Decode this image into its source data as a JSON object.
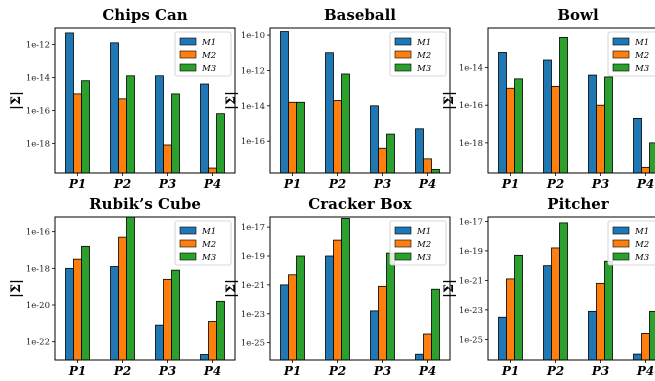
{
  "figure": {
    "ylabel": "|Σ|"
  },
  "colors": {
    "series": [
      "#1f77b4",
      "#ff7f0e",
      "#2ca02c"
    ]
  },
  "chart_data": [
    {
      "type": "bar",
      "title": "Chips Can",
      "ylabel": "|Σ|",
      "log_scale": true,
      "categories": [
        "P1",
        "P2",
        "P3",
        "P4"
      ],
      "ylim_exp": [
        -19.8,
        -11.0
      ],
      "yticks": [
        {
          "exp": -12,
          "label": "1e-12"
        },
        {
          "exp": -14,
          "label": "1e-14"
        },
        {
          "exp": -16,
          "label": "1e-16"
        },
        {
          "exp": -18,
          "label": "1e-18"
        }
      ],
      "legend": {
        "entries": [
          "M1",
          "M2",
          "M3"
        ],
        "placement": "top-right"
      },
      "series": [
        {
          "name": "M1",
          "exponents": [
            -11.3,
            -11.9,
            -13.9,
            -14.4
          ]
        },
        {
          "name": "M2",
          "exponents": [
            -15.0,
            -15.3,
            -18.1,
            -19.5
          ]
        },
        {
          "name": "M3",
          "exponents": [
            -14.2,
            -13.9,
            -15.0,
            -16.2
          ]
        }
      ]
    },
    {
      "type": "bar",
      "title": "Baseball",
      "ylabel": "|Σ|",
      "log_scale": true,
      "categories": [
        "P1",
        "P2",
        "P3",
        "P4"
      ],
      "ylim_exp": [
        -17.8,
        -9.6
      ],
      "yticks": [
        {
          "exp": -10,
          "label": "1e-10"
        },
        {
          "exp": -12,
          "label": "1e-12"
        },
        {
          "exp": -14,
          "label": "1e-14"
        },
        {
          "exp": -16,
          "label": "1e-16"
        }
      ],
      "legend": {
        "entries": [
          "M1",
          "M2",
          "M3"
        ],
        "placement": "top-right"
      },
      "series": [
        {
          "name": "M1",
          "exponents": [
            -9.8,
            -11.0,
            -14.0,
            -15.3
          ]
        },
        {
          "name": "M2",
          "exponents": [
            -13.8,
            -13.7,
            -16.4,
            -17.0
          ]
        },
        {
          "name": "M3",
          "exponents": [
            -13.8,
            -12.2,
            -15.6,
            -17.6
          ]
        }
      ]
    },
    {
      "type": "bar",
      "title": "Bowl",
      "ylabel": "|Σ|",
      "log_scale": true,
      "categories": [
        "P1",
        "P2",
        "P3",
        "P4"
      ],
      "ylim_exp": [
        -19.6,
        -11.9
      ],
      "yticks": [
        {
          "exp": -14,
          "label": "1e-14"
        },
        {
          "exp": -16,
          "label": "1e-16"
        },
        {
          "exp": -18,
          "label": "1e-18"
        }
      ],
      "legend": {
        "entries": [
          "M1",
          "M2",
          "M3"
        ],
        "placement": "top-right"
      },
      "series": [
        {
          "name": "M1",
          "exponents": [
            -13.2,
            -13.6,
            -14.4,
            -16.7
          ]
        },
        {
          "name": "M2",
          "exponents": [
            -15.1,
            -15.0,
            -16.0,
            -19.3
          ]
        },
        {
          "name": "M3",
          "exponents": [
            -14.6,
            -12.4,
            -14.5,
            -18.0
          ]
        }
      ]
    },
    {
      "type": "bar",
      "title": "Rubik’s Cube",
      "ylabel": "|Σ|",
      "log_scale": true,
      "categories": [
        "P1",
        "P2",
        "P3",
        "P4"
      ],
      "ylim_exp": [
        -23.0,
        -15.2
      ],
      "yticks": [
        {
          "exp": -16,
          "label": "1e-16"
        },
        {
          "exp": -18,
          "label": "1e-18"
        },
        {
          "exp": -20,
          "label": "1e-20"
        },
        {
          "exp": -22,
          "label": "1e-22"
        }
      ],
      "legend": {
        "entries": [
          "M1",
          "M2",
          "M3"
        ],
        "placement": "top-right"
      },
      "series": [
        {
          "name": "M1",
          "exponents": [
            -18.0,
            -17.9,
            -21.1,
            -22.7
          ]
        },
        {
          "name": "M2",
          "exponents": [
            -17.5,
            -16.3,
            -18.6,
            -20.9
          ]
        },
        {
          "name": "M3",
          "exponents": [
            -16.8,
            -15.2,
            -18.1,
            -19.8
          ]
        }
      ]
    },
    {
      "type": "bar",
      "title": "Cracker Box",
      "ylabel": "|Σ|",
      "log_scale": true,
      "categories": [
        "P1",
        "P2",
        "P3",
        "P4"
      ],
      "ylim_exp": [
        -26.2,
        -16.3
      ],
      "yticks": [
        {
          "exp": -17,
          "label": "1e-17"
        },
        {
          "exp": -19,
          "label": "1e-19"
        },
        {
          "exp": -21,
          "label": "1e-21"
        },
        {
          "exp": -23,
          "label": "1e-23"
        },
        {
          "exp": -25,
          "label": "1e-25"
        }
      ],
      "legend": {
        "entries": [
          "M1",
          "M2",
          "M3"
        ],
        "placement": "top-right"
      },
      "series": [
        {
          "name": "M1",
          "exponents": [
            -21.0,
            -19.0,
            -22.8,
            -25.8
          ]
        },
        {
          "name": "M2",
          "exponents": [
            -20.3,
            -17.9,
            -21.1,
            -24.4
          ]
        },
        {
          "name": "M3",
          "exponents": [
            -19.0,
            -16.4,
            -18.8,
            -21.3
          ]
        }
      ]
    },
    {
      "type": "bar",
      "title": "Pitcher",
      "ylabel": "|Σ|",
      "log_scale": true,
      "categories": [
        "P1",
        "P2",
        "P3",
        "P4"
      ],
      "ylim_exp": [
        -26.4,
        -16.7
      ],
      "yticks": [
        {
          "exp": -17,
          "label": "1e-17"
        },
        {
          "exp": -19,
          "label": "1e-19"
        },
        {
          "exp": -21,
          "label": "1e-21"
        },
        {
          "exp": -23,
          "label": "1e-23"
        },
        {
          "exp": -25,
          "label": "1e-25"
        }
      ],
      "legend": {
        "entries": [
          "M1",
          "M2",
          "M3"
        ],
        "placement": "top-right"
      },
      "series": [
        {
          "name": "M1",
          "exponents": [
            -23.5,
            -20.0,
            -23.1,
            -26.0
          ]
        },
        {
          "name": "M2",
          "exponents": [
            -20.9,
            -18.8,
            -21.2,
            -24.6
          ]
        },
        {
          "name": "M3",
          "exponents": [
            -19.3,
            -17.1,
            -19.7,
            -23.1
          ]
        }
      ]
    }
  ]
}
